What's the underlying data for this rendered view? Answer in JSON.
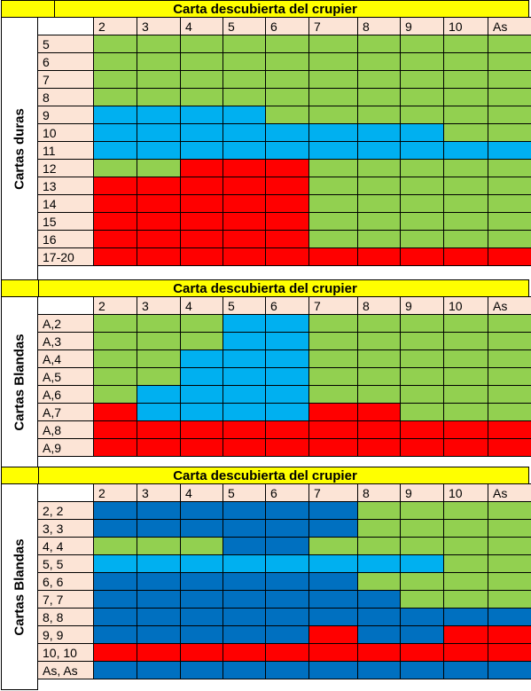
{
  "colors": {
    "G": "#92d050",
    "B": "#00b0f0",
    "R": "#ff0000",
    "D": "#0070c0",
    "header": "#ffff00",
    "label": "#fce4d6"
  },
  "dealer_cards": [
    "2",
    "3",
    "4",
    "5",
    "6",
    "7",
    "8",
    "9",
    "10",
    "As"
  ],
  "sections": [
    {
      "header": "Carta descubierta del crupier",
      "side_label": "Cartas duras",
      "rows": [
        {
          "label": "5",
          "cells": [
            "G",
            "G",
            "G",
            "G",
            "G",
            "G",
            "G",
            "G",
            "G",
            "G"
          ]
        },
        {
          "label": "6",
          "cells": [
            "G",
            "G",
            "G",
            "G",
            "G",
            "G",
            "G",
            "G",
            "G",
            "G"
          ]
        },
        {
          "label": "7",
          "cells": [
            "G",
            "G",
            "G",
            "G",
            "G",
            "G",
            "G",
            "G",
            "G",
            "G"
          ]
        },
        {
          "label": "8",
          "cells": [
            "G",
            "G",
            "G",
            "G",
            "G",
            "G",
            "G",
            "G",
            "G",
            "G"
          ]
        },
        {
          "label": "9",
          "cells": [
            "B",
            "B",
            "B",
            "B",
            "G",
            "G",
            "G",
            "G",
            "G",
            "G"
          ]
        },
        {
          "label": "10",
          "cells": [
            "B",
            "B",
            "B",
            "B",
            "B",
            "B",
            "B",
            "B",
            "G",
            "G"
          ]
        },
        {
          "label": "11",
          "cells": [
            "B",
            "B",
            "B",
            "B",
            "B",
            "B",
            "B",
            "B",
            "B",
            "B"
          ]
        },
        {
          "label": "12",
          "cells": [
            "G",
            "G",
            "R",
            "R",
            "R",
            "G",
            "G",
            "G",
            "G",
            "G"
          ]
        },
        {
          "label": "13",
          "cells": [
            "R",
            "R",
            "R",
            "R",
            "R",
            "G",
            "G",
            "G",
            "G",
            "G"
          ]
        },
        {
          "label": "14",
          "cells": [
            "R",
            "R",
            "R",
            "R",
            "R",
            "G",
            "G",
            "G",
            "G",
            "G"
          ]
        },
        {
          "label": "15",
          "cells": [
            "R",
            "R",
            "R",
            "R",
            "R",
            "G",
            "G",
            "G",
            "G",
            "G"
          ]
        },
        {
          "label": "16",
          "cells": [
            "R",
            "R",
            "R",
            "R",
            "R",
            "G",
            "G",
            "G",
            "G",
            "G"
          ]
        },
        {
          "label": "17-20",
          "cells": [
            "R",
            "R",
            "R",
            "R",
            "R",
            "R",
            "R",
            "R",
            "R",
            "R"
          ]
        }
      ]
    },
    {
      "header": "Carta descubierta del crupier",
      "side_label": "Cartas Blandas",
      "rows": [
        {
          "label": "A,2",
          "cells": [
            "G",
            "G",
            "G",
            "B",
            "B",
            "G",
            "G",
            "G",
            "G",
            "G"
          ]
        },
        {
          "label": "A,3",
          "cells": [
            "G",
            "G",
            "G",
            "B",
            "B",
            "G",
            "G",
            "G",
            "G",
            "G"
          ]
        },
        {
          "label": "A,4",
          "cells": [
            "G",
            "G",
            "B",
            "B",
            "B",
            "G",
            "G",
            "G",
            "G",
            "G"
          ]
        },
        {
          "label": "A,5",
          "cells": [
            "G",
            "G",
            "B",
            "B",
            "B",
            "G",
            "G",
            "G",
            "G",
            "G"
          ]
        },
        {
          "label": "A,6",
          "cells": [
            "G",
            "B",
            "B",
            "B",
            "B",
            "G",
            "G",
            "G",
            "G",
            "G"
          ]
        },
        {
          "label": "A,7",
          "cells": [
            "R",
            "B",
            "B",
            "B",
            "B",
            "R",
            "R",
            "G",
            "G",
            "G"
          ]
        },
        {
          "label": "A,8",
          "cells": [
            "R",
            "R",
            "R",
            "R",
            "R",
            "R",
            "R",
            "R",
            "R",
            "R"
          ]
        },
        {
          "label": "A,9",
          "cells": [
            "R",
            "R",
            "R",
            "R",
            "R",
            "R",
            "R",
            "R",
            "R",
            "R"
          ]
        }
      ]
    },
    {
      "header": "Carta descubierta del crupier",
      "side_label": "Cartas Blandas",
      "rows": [
        {
          "label": "2, 2",
          "cells": [
            "D",
            "D",
            "D",
            "D",
            "D",
            "D",
            "G",
            "G",
            "G",
            "G"
          ]
        },
        {
          "label": "3, 3",
          "cells": [
            "D",
            "D",
            "D",
            "D",
            "D",
            "D",
            "G",
            "G",
            "G",
            "G"
          ]
        },
        {
          "label": "4, 4",
          "cells": [
            "G",
            "G",
            "G",
            "D",
            "D",
            "G",
            "G",
            "G",
            "G",
            "G"
          ]
        },
        {
          "label": "5, 5",
          "cells": [
            "B",
            "B",
            "B",
            "B",
            "B",
            "B",
            "B",
            "B",
            "G",
            "G"
          ]
        },
        {
          "label": "6, 6",
          "cells": [
            "D",
            "D",
            "D",
            "D",
            "D",
            "D",
            "G",
            "G",
            "G",
            "G"
          ]
        },
        {
          "label": "7, 7",
          "cells": [
            "D",
            "D",
            "D",
            "D",
            "D",
            "D",
            "D",
            "G",
            "G",
            "G"
          ]
        },
        {
          "label": "8, 8",
          "cells": [
            "D",
            "D",
            "D",
            "D",
            "D",
            "D",
            "D",
            "D",
            "D",
            "D"
          ]
        },
        {
          "label": "9, 9",
          "cells": [
            "D",
            "D",
            "D",
            "D",
            "D",
            "R",
            "D",
            "D",
            "R",
            "R"
          ]
        },
        {
          "label": "10, 10",
          "cells": [
            "R",
            "R",
            "R",
            "R",
            "R",
            "R",
            "R",
            "R",
            "R",
            "R"
          ]
        },
        {
          "label": "As, As",
          "cells": [
            "D",
            "D",
            "D",
            "D",
            "D",
            "D",
            "D",
            "D",
            "D",
            "D"
          ]
        }
      ]
    }
  ]
}
